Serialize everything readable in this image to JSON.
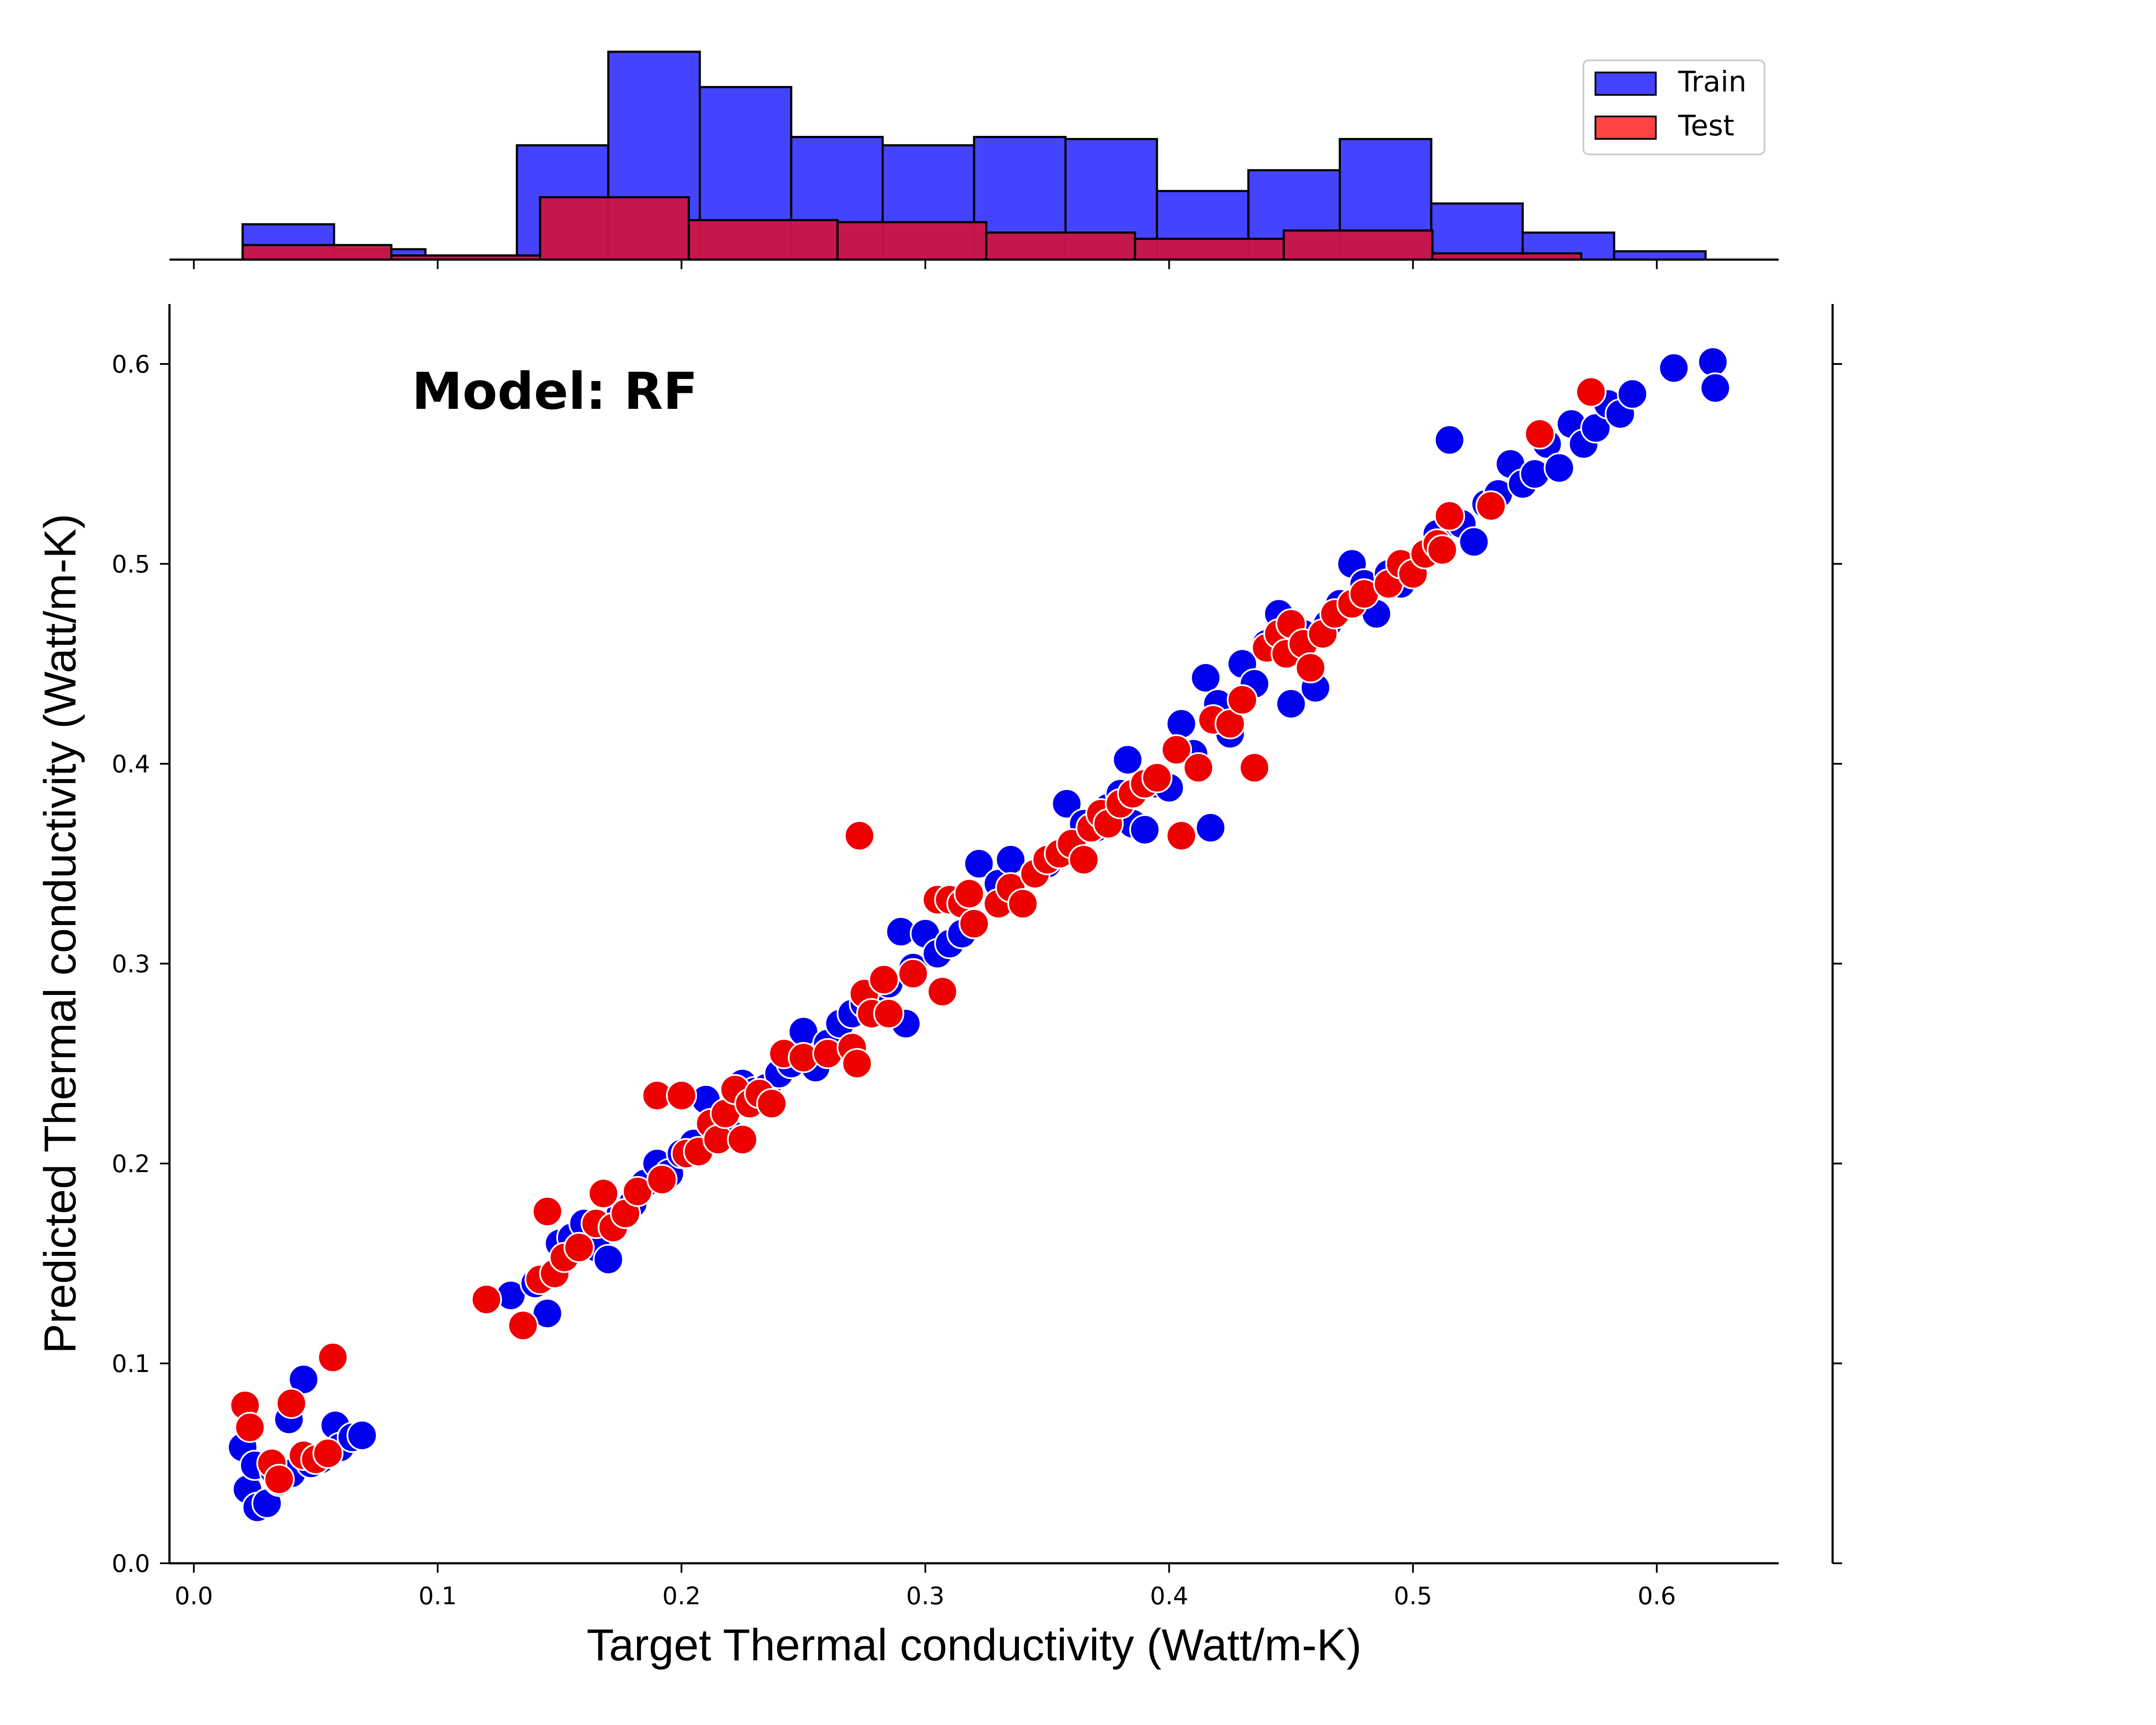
{
  "chart_data": {
    "type": "scatter",
    "title": "",
    "annotation": "Model: RF",
    "xlabel": "Target Thermal conductivity (Watt/m-K)",
    "ylabel": "Predicted Thermal conductivity (Watt/m-K)",
    "xlim": [
      -0.01,
      0.65
    ],
    "ylim": [
      0.0,
      0.63
    ],
    "x_ticks": [
      "0.0",
      "0.1",
      "0.2",
      "0.3",
      "0.4",
      "0.5",
      "0.6"
    ],
    "y_ticks": [
      "0.0",
      "0.1",
      "0.2",
      "0.3",
      "0.4",
      "0.5",
      "0.6"
    ],
    "grid": false,
    "legend": {
      "placement": "top-right",
      "entries": [
        "Train",
        "Test"
      ]
    },
    "colors": {
      "train": "#0000ee",
      "test": "#ee0000",
      "train_hist": "#4444ff",
      "test_hist": "#cc1444"
    },
    "series": [
      {
        "name": "Train",
        "points": [
          [
            0.02,
            0.058
          ],
          [
            0.022,
            0.037
          ],
          [
            0.025,
            0.049
          ],
          [
            0.026,
            0.028
          ],
          [
            0.03,
            0.03
          ],
          [
            0.033,
            0.046
          ],
          [
            0.035,
            0.041
          ],
          [
            0.039,
            0.072
          ],
          [
            0.04,
            0.045
          ],
          [
            0.045,
            0.092
          ],
          [
            0.048,
            0.05
          ],
          [
            0.052,
            0.052
          ],
          [
            0.056,
            0.055
          ],
          [
            0.058,
            0.069
          ],
          [
            0.06,
            0.058
          ],
          [
            0.065,
            0.063
          ],
          [
            0.069,
            0.064
          ],
          [
            0.13,
            0.134
          ],
          [
            0.14,
            0.14
          ],
          [
            0.145,
            0.125
          ],
          [
            0.15,
            0.16
          ],
          [
            0.155,
            0.163
          ],
          [
            0.16,
            0.17
          ],
          [
            0.165,
            0.158
          ],
          [
            0.17,
            0.152
          ],
          [
            0.175,
            0.175
          ],
          [
            0.18,
            0.18
          ],
          [
            0.185,
            0.19
          ],
          [
            0.19,
            0.2
          ],
          [
            0.195,
            0.195
          ],
          [
            0.2,
            0.205
          ],
          [
            0.205,
            0.21
          ],
          [
            0.21,
            0.232
          ],
          [
            0.215,
            0.22
          ],
          [
            0.22,
            0.215
          ],
          [
            0.225,
            0.24
          ],
          [
            0.23,
            0.236
          ],
          [
            0.235,
            0.238
          ],
          [
            0.24,
            0.245
          ],
          [
            0.245,
            0.25
          ],
          [
            0.25,
            0.266
          ],
          [
            0.255,
            0.248
          ],
          [
            0.26,
            0.26
          ],
          [
            0.265,
            0.27
          ],
          [
            0.27,
            0.275
          ],
          [
            0.275,
            0.28
          ],
          [
            0.28,
            0.285
          ],
          [
            0.285,
            0.29
          ],
          [
            0.29,
            0.316
          ],
          [
            0.292,
            0.27
          ],
          [
            0.295,
            0.298
          ],
          [
            0.3,
            0.315
          ],
          [
            0.305,
            0.305
          ],
          [
            0.31,
            0.31
          ],
          [
            0.315,
            0.315
          ],
          [
            0.32,
            0.32
          ],
          [
            0.322,
            0.35
          ],
          [
            0.33,
            0.34
          ],
          [
            0.335,
            0.352
          ],
          [
            0.34,
            0.33
          ],
          [
            0.345,
            0.345
          ],
          [
            0.35,
            0.35
          ],
          [
            0.355,
            0.355
          ],
          [
            0.358,
            0.38
          ],
          [
            0.36,
            0.36
          ],
          [
            0.365,
            0.37
          ],
          [
            0.37,
            0.368
          ],
          [
            0.375,
            0.378
          ],
          [
            0.38,
            0.385
          ],
          [
            0.383,
            0.402
          ],
          [
            0.385,
            0.37
          ],
          [
            0.39,
            0.367
          ],
          [
            0.395,
            0.39
          ],
          [
            0.4,
            0.388
          ],
          [
            0.405,
            0.42
          ],
          [
            0.41,
            0.405
          ],
          [
            0.415,
            0.443
          ],
          [
            0.417,
            0.368
          ],
          [
            0.42,
            0.43
          ],
          [
            0.425,
            0.415
          ],
          [
            0.43,
            0.45
          ],
          [
            0.435,
            0.44
          ],
          [
            0.44,
            0.46
          ],
          [
            0.445,
            0.475
          ],
          [
            0.45,
            0.43
          ],
          [
            0.455,
            0.465
          ],
          [
            0.46,
            0.438
          ],
          [
            0.465,
            0.47
          ],
          [
            0.47,
            0.48
          ],
          [
            0.475,
            0.5
          ],
          [
            0.48,
            0.49
          ],
          [
            0.485,
            0.475
          ],
          [
            0.49,
            0.495
          ],
          [
            0.495,
            0.49
          ],
          [
            0.5,
            0.5
          ],
          [
            0.505,
            0.505
          ],
          [
            0.51,
            0.515
          ],
          [
            0.515,
            0.562
          ],
          [
            0.52,
            0.52
          ],
          [
            0.525,
            0.511
          ],
          [
            0.53,
            0.53
          ],
          [
            0.535,
            0.535
          ],
          [
            0.54,
            0.55
          ],
          [
            0.545,
            0.54
          ],
          [
            0.55,
            0.545
          ],
          [
            0.555,
            0.56
          ],
          [
            0.56,
            0.548
          ],
          [
            0.565,
            0.57
          ],
          [
            0.57,
            0.56
          ],
          [
            0.575,
            0.568
          ],
          [
            0.58,
            0.58
          ],
          [
            0.585,
            0.575
          ],
          [
            0.59,
            0.585
          ],
          [
            0.607,
            0.598
          ],
          [
            0.623,
            0.601
          ],
          [
            0.624,
            0.588
          ]
        ]
      },
      {
        "name": "Test",
        "points": [
          [
            0.021,
            0.079
          ],
          [
            0.023,
            0.068
          ],
          [
            0.032,
            0.05
          ],
          [
            0.035,
            0.042
          ],
          [
            0.04,
            0.08
          ],
          [
            0.045,
            0.054
          ],
          [
            0.05,
            0.052
          ],
          [
            0.055,
            0.055
          ],
          [
            0.057,
            0.103
          ],
          [
            0.12,
            0.132
          ],
          [
            0.135,
            0.119
          ],
          [
            0.142,
            0.142
          ],
          [
            0.145,
            0.176
          ],
          [
            0.148,
            0.145
          ],
          [
            0.152,
            0.153
          ],
          [
            0.158,
            0.158
          ],
          [
            0.165,
            0.17
          ],
          [
            0.168,
            0.185
          ],
          [
            0.172,
            0.168
          ],
          [
            0.177,
            0.175
          ],
          [
            0.182,
            0.186
          ],
          [
            0.19,
            0.234
          ],
          [
            0.192,
            0.192
          ],
          [
            0.2,
            0.234
          ],
          [
            0.202,
            0.205
          ],
          [
            0.207,
            0.206
          ],
          [
            0.212,
            0.22
          ],
          [
            0.215,
            0.212
          ],
          [
            0.218,
            0.225
          ],
          [
            0.222,
            0.237
          ],
          [
            0.225,
            0.212
          ],
          [
            0.228,
            0.23
          ],
          [
            0.232,
            0.235
          ],
          [
            0.237,
            0.23
          ],
          [
            0.242,
            0.255
          ],
          [
            0.25,
            0.253
          ],
          [
            0.26,
            0.255
          ],
          [
            0.27,
            0.258
          ],
          [
            0.272,
            0.25
          ],
          [
            0.273,
            0.364
          ],
          [
            0.275,
            0.285
          ],
          [
            0.278,
            0.275
          ],
          [
            0.283,
            0.292
          ],
          [
            0.285,
            0.275
          ],
          [
            0.295,
            0.295
          ],
          [
            0.305,
            0.332
          ],
          [
            0.307,
            0.286
          ],
          [
            0.31,
            0.332
          ],
          [
            0.315,
            0.33
          ],
          [
            0.318,
            0.335
          ],
          [
            0.32,
            0.32
          ],
          [
            0.33,
            0.33
          ],
          [
            0.335,
            0.338
          ],
          [
            0.34,
            0.33
          ],
          [
            0.345,
            0.345
          ],
          [
            0.35,
            0.352
          ],
          [
            0.355,
            0.355
          ],
          [
            0.36,
            0.36
          ],
          [
            0.365,
            0.352
          ],
          [
            0.368,
            0.368
          ],
          [
            0.372,
            0.375
          ],
          [
            0.375,
            0.37
          ],
          [
            0.38,
            0.38
          ],
          [
            0.385,
            0.385
          ],
          [
            0.39,
            0.39
          ],
          [
            0.395,
            0.393
          ],
          [
            0.403,
            0.407
          ],
          [
            0.405,
            0.364
          ],
          [
            0.412,
            0.398
          ],
          [
            0.418,
            0.422
          ],
          [
            0.425,
            0.42
          ],
          [
            0.43,
            0.432
          ],
          [
            0.435,
            0.398
          ],
          [
            0.44,
            0.458
          ],
          [
            0.445,
            0.465
          ],
          [
            0.448,
            0.455
          ],
          [
            0.45,
            0.47
          ],
          [
            0.455,
            0.46
          ],
          [
            0.458,
            0.448
          ],
          [
            0.463,
            0.465
          ],
          [
            0.468,
            0.475
          ],
          [
            0.475,
            0.48
          ],
          [
            0.48,
            0.485
          ],
          [
            0.49,
            0.49
          ],
          [
            0.495,
            0.5
          ],
          [
            0.5,
            0.495
          ],
          [
            0.505,
            0.505
          ],
          [
            0.51,
            0.51
          ],
          [
            0.512,
            0.507
          ],
          [
            0.515,
            0.524
          ],
          [
            0.532,
            0.529
          ],
          [
            0.552,
            0.565
          ],
          [
            0.573,
            0.586
          ]
        ]
      }
    ],
    "histograms": {
      "train_bins": [
        [
          0.02,
          0.0575,
          0.17
        ],
        [
          0.0575,
          0.095,
          0.05
        ],
        [
          0.095,
          0.1325,
          0.02
        ],
        [
          0.1325,
          0.17,
          0.55
        ],
        [
          0.17,
          0.2075,
          1.0
        ],
        [
          0.2075,
          0.245,
          0.83
        ],
        [
          0.245,
          0.2825,
          0.59
        ],
        [
          0.2825,
          0.32,
          0.55
        ],
        [
          0.32,
          0.3575,
          0.59
        ],
        [
          0.3575,
          0.395,
          0.58
        ],
        [
          0.395,
          0.4325,
          0.33
        ],
        [
          0.4325,
          0.47,
          0.43
        ],
        [
          0.47,
          0.5075,
          0.58
        ],
        [
          0.5075,
          0.545,
          0.27
        ],
        [
          0.545,
          0.5825,
          0.13
        ],
        [
          0.5825,
          0.62,
          0.04
        ]
      ],
      "test_bins": [
        [
          0.02,
          0.081,
          0.07
        ],
        [
          0.081,
          0.142,
          0.02
        ],
        [
          0.142,
          0.203,
          0.3
        ],
        [
          0.203,
          0.264,
          0.19
        ],
        [
          0.264,
          0.325,
          0.18
        ],
        [
          0.325,
          0.386,
          0.13
        ],
        [
          0.386,
          0.447,
          0.1
        ],
        [
          0.447,
          0.508,
          0.14
        ],
        [
          0.508,
          0.569,
          0.03
        ]
      ]
    }
  }
}
